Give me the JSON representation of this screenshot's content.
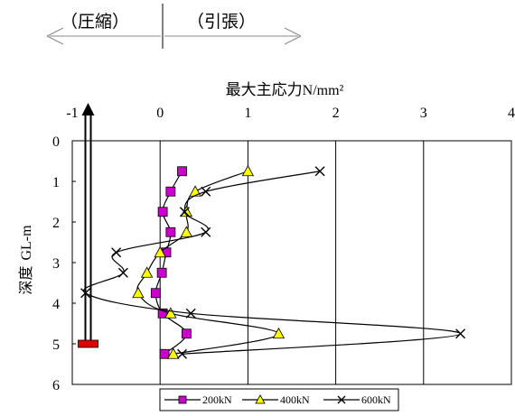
{
  "header": {
    "compression_label": "（圧縮）",
    "tension_label": "（引張）"
  },
  "chart_data": {
    "type": "scatter",
    "title": "",
    "xlabel_main": "最大主応力",
    "xlabel_unit": "N/mm²",
    "ylabel_main": "深度",
    "ylabel_unit": "GL-m",
    "xlim": [
      -1,
      4
    ],
    "ylim": [
      0,
      6
    ],
    "x_axis_position": "top",
    "y_axis_inverted": true,
    "x_ticks": [
      -1,
      0,
      1,
      2,
      3,
      4
    ],
    "y_ticks": [
      0,
      1,
      2,
      3,
      4,
      5,
      6
    ],
    "grid": "vertical-only",
    "legend_position": "bottom",
    "series": [
      {
        "name": "200kN",
        "marker": "square",
        "line_color": "#000000",
        "marker_color": "#cc00cc",
        "points": [
          {
            "x": 0.25,
            "y": 0.75
          },
          {
            "x": 0.12,
            "y": 1.25
          },
          {
            "x": 0.03,
            "y": 1.75
          },
          {
            "x": 0.12,
            "y": 2.25
          },
          {
            "x": 0.07,
            "y": 2.75
          },
          {
            "x": 0.02,
            "y": 3.25
          },
          {
            "x": -0.05,
            "y": 3.75
          },
          {
            "x": 0.03,
            "y": 4.25
          },
          {
            "x": 0.3,
            "y": 4.75
          },
          {
            "x": 0.05,
            "y": 5.25
          }
        ]
      },
      {
        "name": "400kN",
        "marker": "triangle",
        "line_color": "#000000",
        "marker_color": "#ffff00",
        "points": [
          {
            "x": 1.0,
            "y": 0.75
          },
          {
            "x": 0.4,
            "y": 1.25
          },
          {
            "x": 0.3,
            "y": 1.75
          },
          {
            "x": 0.3,
            "y": 2.25
          },
          {
            "x": 0.0,
            "y": 2.75
          },
          {
            "x": -0.15,
            "y": 3.25
          },
          {
            "x": -0.25,
            "y": 3.75
          },
          {
            "x": 0.12,
            "y": 4.25
          },
          {
            "x": 1.35,
            "y": 4.75
          },
          {
            "x": 0.15,
            "y": 5.25
          }
        ]
      },
      {
        "name": "600kN",
        "marker": "x",
        "line_color": "#000000",
        "marker_color": "#000000",
        "points": [
          {
            "x": 1.82,
            "y": 0.75
          },
          {
            "x": 0.52,
            "y": 1.25
          },
          {
            "x": 0.28,
            "y": 1.75
          },
          {
            "x": 0.52,
            "y": 2.25
          },
          {
            "x": -0.5,
            "y": 2.75
          },
          {
            "x": -0.42,
            "y": 3.25
          },
          {
            "x": -0.85,
            "y": 3.75
          },
          {
            "x": 0.35,
            "y": 4.25
          },
          {
            "x": 3.42,
            "y": 4.75
          },
          {
            "x": 0.25,
            "y": 5.25
          }
        ]
      }
    ]
  },
  "pile": {
    "top_depth": 0.0,
    "bottom_depth": 5.0,
    "x": -0.82,
    "shaft_color": "#000000",
    "tip_color": "#e00000"
  }
}
